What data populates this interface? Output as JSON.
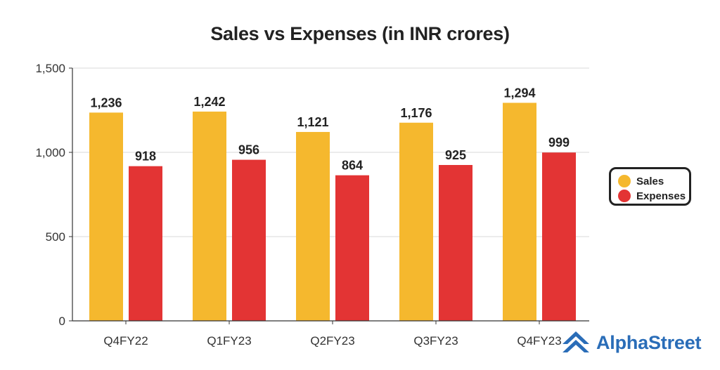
{
  "chart_data": {
    "type": "bar",
    "title": "Sales vs Expenses (in INR crores)",
    "categories": [
      "Q4FY22",
      "Q1FY23",
      "Q2FY23",
      "Q3FY23",
      "Q4FY23"
    ],
    "series": [
      {
        "name": "Sales",
        "values": [
          1236,
          1242,
          1121,
          1176,
          1294
        ],
        "color": "#f5b82e"
      },
      {
        "name": "Expenses",
        "values": [
          918,
          956,
          864,
          925,
          999
        ],
        "color": "#e33434"
      }
    ],
    "value_labels": {
      "Sales": [
        "1,236",
        "1,242",
        "1,121",
        "1,176",
        "1,294"
      ],
      "Expenses": [
        "918",
        "956",
        "864",
        "925",
        "999"
      ]
    },
    "ylim": [
      0,
      1500
    ],
    "yticks": [
      0,
      500,
      1000,
      1500
    ],
    "ytick_labels": [
      "0",
      "500",
      "1,000",
      "1,500"
    ],
    "grid": true,
    "legend_position": "right"
  },
  "brand": {
    "name": "AlphaStreet",
    "logo_icon": "alphastreet-logo-icon",
    "color": "#2a6db8"
  }
}
